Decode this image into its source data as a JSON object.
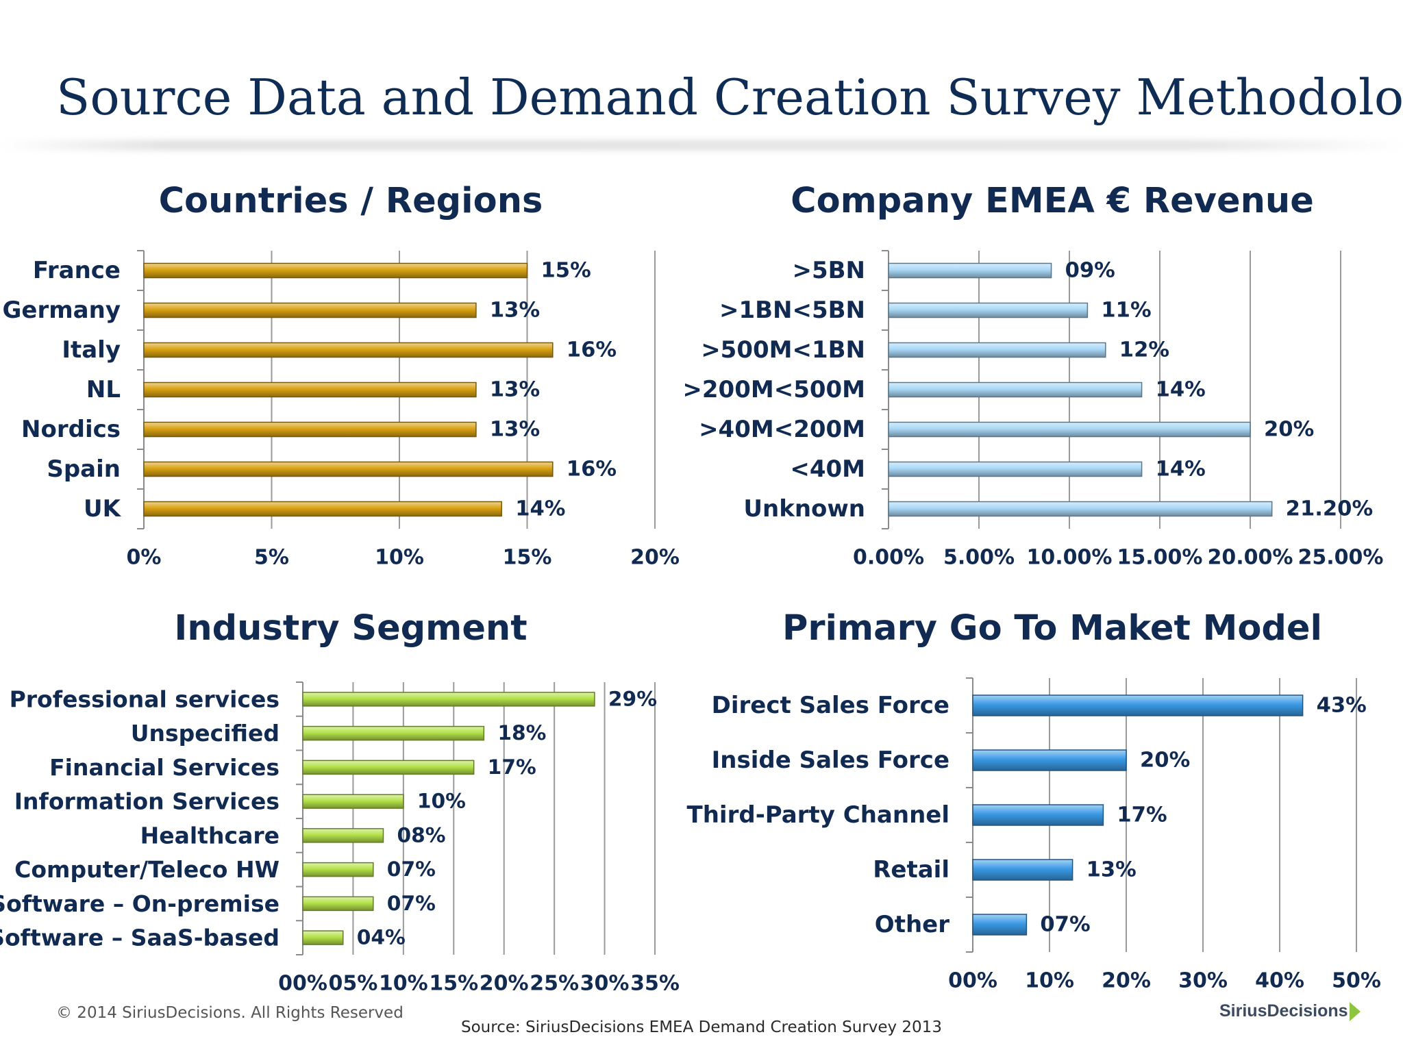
{
  "slide": {
    "title": "Source Data and Demand Creation Survey Methodology",
    "copyright": "© 2014 SiriusDecisions. All Rights Reserved",
    "source": "Source: SiriusDecisions EMEA Demand Creation Survey 2013",
    "logo_text": "SiriusDecisions"
  },
  "colors": {
    "title": "#0f2c55",
    "text": "#112a51",
    "countries_bar": "#d9a213",
    "revenue_bar": "#a9d8f6",
    "industry_bar": "#b5e24a",
    "gotomarket_bar": "#3a9ae6",
    "logo_arrow": "#8cc63f"
  },
  "chart_data": [
    {
      "type": "bar",
      "orientation": "horizontal",
      "title": "Countries / Regions",
      "categories": [
        "France",
        "Germany",
        "Italy",
        "NL",
        "Nordics",
        "Spain",
        "UK"
      ],
      "values": [
        15,
        13,
        16,
        13,
        13,
        16,
        14
      ],
      "value_labels": [
        "15%",
        "13%",
        "16%",
        "13%",
        "13%",
        "16%",
        "14%"
      ],
      "xlim": [
        0,
        20
      ],
      "ticks": [
        0,
        5,
        10,
        15,
        20
      ],
      "tick_labels": [
        "0%",
        "5%",
        "10%",
        "15%",
        "20%"
      ],
      "grid": true
    },
    {
      "type": "bar",
      "orientation": "horizontal",
      "title": "Company EMEA € Revenue",
      "categories": [
        ">5BN",
        ">1BN<5BN",
        ">500M<1BN",
        ">200M<500M",
        ">40M<200M",
        "<40M",
        "Unknown"
      ],
      "values": [
        9,
        11,
        12,
        14,
        20,
        14,
        21.2
      ],
      "value_labels": [
        "09%",
        "11%",
        "12%",
        "14%",
        "20%",
        "14%",
        "21.20%"
      ],
      "xlim": [
        0,
        25
      ],
      "ticks": [
        0,
        5,
        10,
        15,
        20,
        25
      ],
      "tick_labels": [
        "0.00%",
        "5.00%",
        "10.00%",
        "15.00%",
        "20.00%",
        "25.00%"
      ],
      "grid": true
    },
    {
      "type": "bar",
      "orientation": "horizontal",
      "title": "Industry Segment",
      "categories": [
        "Professional services",
        "Unspecified",
        "Financial Services",
        "Information Services",
        "Healthcare",
        "Computer/Teleco HW",
        "Software – On-premise",
        "Software – SaaS-based"
      ],
      "values": [
        29,
        18,
        17,
        10,
        8,
        7,
        7,
        4
      ],
      "value_labels": [
        "29%",
        "18%",
        "17%",
        "10%",
        "08%",
        "07%",
        "07%",
        "04%"
      ],
      "xlim": [
        0,
        35
      ],
      "ticks": [
        0,
        5,
        10,
        15,
        20,
        25,
        30,
        35
      ],
      "tick_labels": [
        "00%",
        "05%",
        "10%",
        "15%",
        "20%",
        "25%",
        "30%",
        "35%"
      ],
      "grid": true
    },
    {
      "type": "bar",
      "orientation": "horizontal",
      "title": "Primary Go To Maket Model",
      "categories": [
        "Direct Sales Force",
        "Inside Sales Force",
        "Third-Party Channel",
        "Retail",
        "Other"
      ],
      "values": [
        43,
        20,
        17,
        13,
        7
      ],
      "value_labels": [
        "43%",
        "20%",
        "17%",
        "13%",
        "07%"
      ],
      "xlim": [
        0,
        50
      ],
      "ticks": [
        0,
        10,
        20,
        30,
        40,
        50
      ],
      "tick_labels": [
        "00%",
        "10%",
        "20%",
        "30%",
        "40%",
        "50%"
      ],
      "grid": true
    }
  ]
}
